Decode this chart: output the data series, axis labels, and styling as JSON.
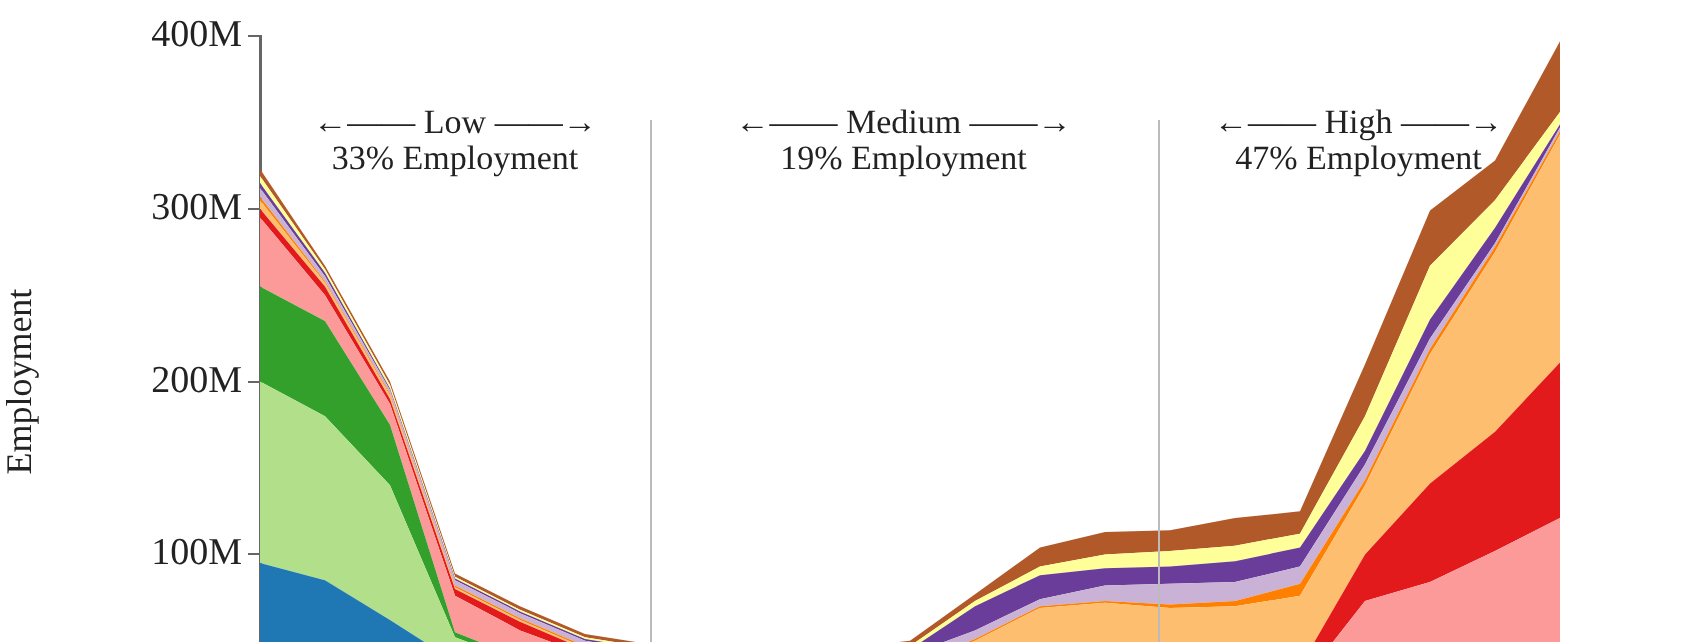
{
  "chart_data": {
    "type": "area",
    "stacked": true,
    "ylabel": "Employment",
    "categories": [
      null,
      null,
      null,
      null,
      null,
      null,
      null,
      null,
      null,
      null,
      null,
      null,
      null,
      null,
      null,
      null,
      null,
      null,
      null,
      null,
      null
    ],
    "ylim": [
      0,
      400
    ],
    "yticks": [
      {
        "value": 100,
        "label": "100M"
      },
      {
        "value": 200,
        "label": "200M"
      },
      {
        "value": 300,
        "label": "300M"
      },
      {
        "value": 400,
        "label": "400M"
      }
    ],
    "tick_labels": "y",
    "grid": false,
    "legend": false,
    "series": [
      {
        "color": "#1f78b4",
        "values": [
          95,
          85,
          62,
          38,
          30,
          25,
          20,
          17,
          15,
          13,
          12,
          10,
          10,
          10,
          10,
          10,
          10,
          11,
          12,
          14,
          16
        ]
      },
      {
        "color": "#b2df8a",
        "values": [
          105,
          95,
          78,
          14,
          8,
          5,
          5,
          5,
          5,
          5,
          4,
          4,
          4,
          4,
          4,
          4,
          4,
          4,
          4,
          4,
          4
        ]
      },
      {
        "color": "#33a02c",
        "values": [
          55,
          55,
          35,
          3,
          2,
          2,
          2,
          2,
          2,
          2,
          2,
          2,
          2,
          2,
          2,
          2,
          2,
          2,
          2,
          2,
          2
        ]
      },
      {
        "color": "#fb9a99",
        "values": [
          40,
          15,
          12,
          21,
          16,
          10,
          9,
          9,
          8,
          8,
          8,
          8,
          8,
          8,
          8,
          8,
          9,
          56,
          66,
          82,
          99
        ]
      },
      {
        "color": "#e31a1c",
        "values": [
          5,
          5,
          3,
          4,
          5,
          3,
          3,
          3,
          3,
          3,
          4,
          4,
          4,
          5,
          6,
          8,
          10,
          27,
          57,
          69,
          90
        ]
      },
      {
        "color": "#fdbf6f",
        "values": [
          5,
          2,
          2,
          1,
          1,
          1,
          1,
          1,
          2,
          3,
          4,
          22,
          41,
          43,
          39,
          38,
          41,
          40,
          75,
          104,
          132
        ]
      },
      {
        "color": "#ff7f00",
        "values": [
          2,
          1,
          1,
          1,
          1,
          1,
          1,
          1,
          1,
          1,
          1,
          1,
          1,
          1,
          2,
          3,
          7,
          3,
          3,
          3,
          2
        ]
      },
      {
        "color": "#cab2d6",
        "values": [
          5,
          3,
          2,
          3,
          3,
          3,
          3,
          4,
          4,
          5,
          7,
          5,
          4,
          9,
          12,
          11,
          10,
          9,
          6,
          2,
          2
        ]
      },
      {
        "color": "#6a3d9a",
        "values": [
          3,
          2,
          1,
          1,
          1,
          1,
          1,
          1,
          1,
          2,
          3,
          14,
          14,
          10,
          10,
          12,
          11,
          8,
          11,
          9,
          2
        ]
      },
      {
        "color": "#ffff99",
        "values": [
          4,
          2,
          2,
          1,
          1,
          1,
          1,
          1,
          1,
          2,
          2,
          3,
          5,
          8,
          9,
          9,
          8,
          20,
          31,
          16,
          7
        ]
      },
      {
        "color": "#b15928",
        "values": [
          4,
          2,
          2,
          2,
          2,
          2,
          2,
          2,
          2,
          2,
          3,
          4,
          11,
          13,
          12,
          16,
          13,
          30,
          32,
          23,
          41
        ]
      }
    ],
    "annotations": [
      "←—— Low ——→",
      "33% Employment",
      "←—— Medium ——→",
      "19% Employment",
      "←—— High ——→",
      "47% Employment"
    ]
  }
}
